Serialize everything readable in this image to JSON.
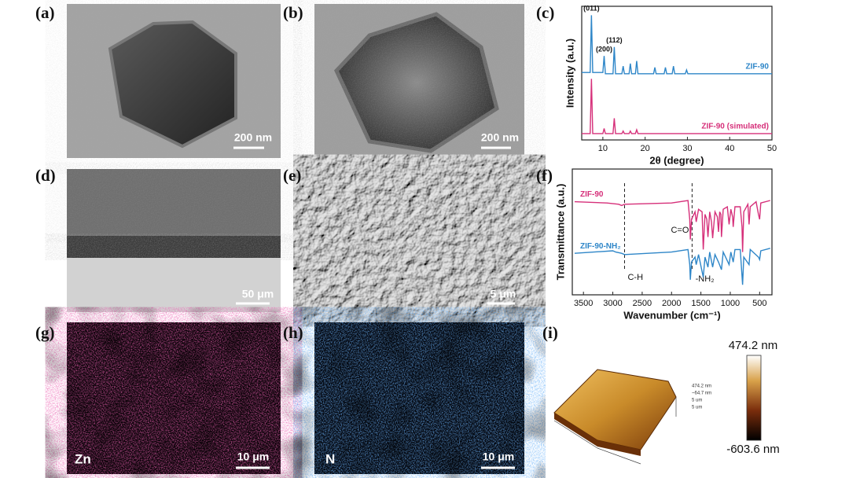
{
  "panels": [
    {
      "label": "(a)",
      "scale_bar": "200 nm"
    },
    {
      "label": "(b)",
      "scale_bar": "200 nm"
    },
    {
      "label": "(c)"
    },
    {
      "label": "(d)",
      "scale_bar": "50 μm"
    },
    {
      "label": "(e)",
      "scale_bar": "5 μm"
    },
    {
      "label": "(f)"
    },
    {
      "label": "(g)",
      "scale_bar": "10 μm",
      "element": "Zn"
    },
    {
      "label": "(h)",
      "scale_bar": "10 μm",
      "element": "N"
    },
    {
      "label": "(i)",
      "colorbar_max": "474.2 nm",
      "colorbar_min": "-603.6 nm",
      "inset_legend": [
        "474.2 nm",
        "~64.7 nm",
        "5 um",
        "5 um"
      ]
    }
  ],
  "chart_data": [
    {
      "type": "line",
      "x_label": "2θ (degree)",
      "y_label": "Intensity (a.u.)",
      "xlim": [
        5,
        50
      ],
      "xticks": [
        10,
        20,
        30,
        40,
        50
      ],
      "ylim": [
        0,
        105
      ],
      "legend": "right",
      "series": [
        {
          "name": "ZIF-90",
          "color": "#2e86c8",
          "x": [
            5,
            7.0,
            7.3,
            7.6,
            10.0,
            10.3,
            10.6,
            12.4,
            12.7,
            13.0,
            14.5,
            14.8,
            15.1,
            16.2,
            16.5,
            16.8,
            17.7,
            18.0,
            18.3,
            22.0,
            22.3,
            22.6,
            24.5,
            24.8,
            25.1,
            26.4,
            26.7,
            27.0,
            29.5,
            29.8,
            30.1,
            50
          ],
          "values": [
            53,
            53,
            98,
            53,
            53,
            66,
            52,
            52,
            73,
            52,
            52,
            58,
            52,
            52,
            60,
            52,
            52,
            62,
            52,
            52,
            57,
            52,
            52,
            57,
            52,
            52,
            58,
            52,
            52,
            55,
            52,
            52
          ]
        },
        {
          "name": "ZIF-90 (simulated)",
          "color": "#d6307a",
          "x": [
            5,
            7.0,
            7.3,
            7.6,
            10.0,
            10.3,
            10.6,
            12.4,
            12.7,
            13.0,
            14.5,
            14.8,
            15.1,
            16.2,
            16.5,
            16.8,
            17.7,
            18.0,
            18.3,
            50
          ],
          "values": [
            5,
            5,
            48,
            5,
            5,
            9,
            5,
            5,
            17,
            5,
            5,
            7,
            5,
            5,
            7,
            5,
            5,
            8,
            5,
            5
          ]
        }
      ],
      "peak_labels": [
        {
          "x": 7.3,
          "y": 98,
          "label": "(011)"
        },
        {
          "x": 10.3,
          "y": 66,
          "label": "(200)"
        },
        {
          "x": 12.7,
          "y": 73,
          "label": "(112)"
        }
      ]
    },
    {
      "type": "line",
      "x_label": "Wavenumber (cm⁻¹)",
      "y_label": "Transmittance (a.u.)",
      "xlim": [
        3690,
        290
      ],
      "xticks": [
        3500,
        3000,
        2500,
        2000,
        1500,
        1000,
        500
      ],
      "ylim": [
        0,
        100
      ],
      "legend": "left",
      "series": [
        {
          "name": "ZIF-90",
          "color": "#d6307a",
          "x": [
            3650,
            3100,
            2900,
            2850,
            2800,
            2000,
            1720,
            1690,
            1680,
            1660,
            1600,
            1580,
            1540,
            1480,
            1460,
            1430,
            1400,
            1380,
            1350,
            1320,
            1300,
            1260,
            1220,
            1200,
            1180,
            1160,
            1150,
            1120,
            1050,
            1020,
            990,
            960,
            950,
            920,
            830,
            800,
            790,
            770,
            700,
            680,
            660,
            560,
            520,
            500,
            480,
            320
          ],
          "values": [
            74,
            73,
            72,
            71,
            72,
            73,
            75,
            60,
            44,
            60,
            66,
            58,
            68,
            66,
            36,
            64,
            60,
            46,
            66,
            58,
            45,
            66,
            62,
            50,
            66,
            64,
            46,
            68,
            70,
            56,
            68,
            62,
            54,
            70,
            70,
            54,
            34,
            66,
            72,
            56,
            70,
            74,
            64,
            60,
            73,
            75
          ]
        },
        {
          "name": "ZIF-90-NH₂",
          "color": "#2e86c8",
          "x": [
            3650,
            3000,
            2950,
            2850,
            2800,
            2000,
            1720,
            1690,
            1680,
            1660,
            1600,
            1580,
            1540,
            1460,
            1430,
            1380,
            1350,
            1300,
            1260,
            1200,
            1150,
            1120,
            1020,
            990,
            950,
            920,
            830,
            790,
            770,
            680,
            660,
            520,
            500,
            480,
            320
          ],
          "values": [
            33,
            35,
            34,
            33,
            32,
            34,
            36,
            24,
            12,
            26,
            30,
            24,
            32,
            14,
            30,
            22,
            34,
            22,
            32,
            26,
            20,
            34,
            24,
            34,
            26,
            36,
            36,
            8,
            30,
            24,
            36,
            30,
            28,
            35,
            37
          ]
        }
      ],
      "markers": [
        {
          "x": 2800,
          "label": "C-H",
          "label_side": "bottom"
        },
        {
          "x": 1650,
          "label": "C=O",
          "label_side": "left"
        }
      ],
      "annotations": [
        {
          "x": 1620,
          "label": "-NH₂"
        }
      ]
    }
  ]
}
